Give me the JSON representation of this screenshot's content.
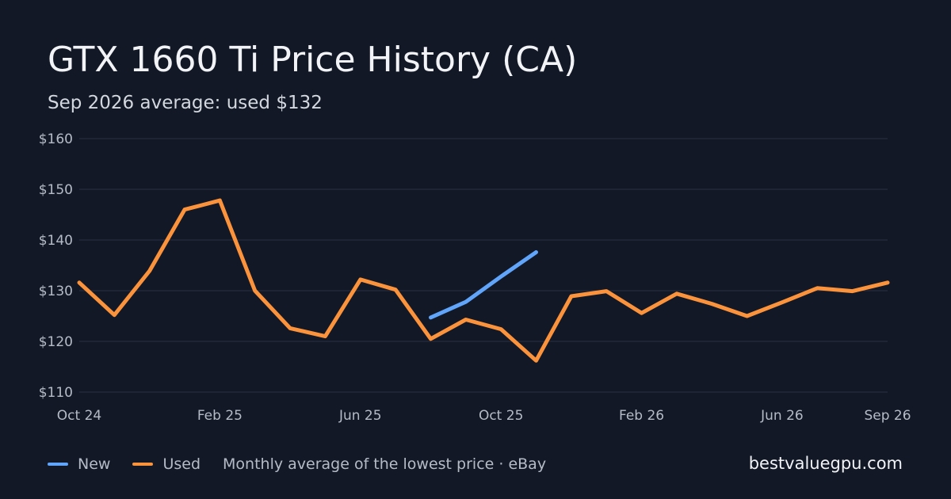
{
  "chart_data": {
    "type": "line",
    "title": "GTX 1660 Ti Price History (CA)",
    "subtitle": "Sep 2026 average: used $132",
    "x": [
      "2024-10",
      "2024-11",
      "2024-12",
      "2025-01",
      "2025-02",
      "2025-03",
      "2025-04",
      "2025-05",
      "2025-06",
      "2025-07",
      "2025-08",
      "2025-09",
      "2025-10",
      "2025-11",
      "2025-12",
      "2026-01",
      "2026-02",
      "2026-03",
      "2026-04",
      "2026-05",
      "2026-06",
      "2026-07",
      "2026-08",
      "2026-09"
    ],
    "x_ticks": [
      {
        "label": "Oct 24",
        "index": 0
      },
      {
        "label": "Feb 25",
        "index": 4
      },
      {
        "label": "Jun 25",
        "index": 8
      },
      {
        "label": "Oct 25",
        "index": 12
      },
      {
        "label": "Feb 26",
        "index": 16
      },
      {
        "label": "Jun 26",
        "index": 20
      },
      {
        "label": "Sep 26",
        "index": 23
      }
    ],
    "y_ticks": [
      {
        "label": "$160",
        "value": 160
      },
      {
        "label": "$150",
        "value": 150
      },
      {
        "label": "$140",
        "value": 140
      },
      {
        "label": "$130",
        "value": 130
      },
      {
        "label": "$120",
        "value": 120
      },
      {
        "label": "$110",
        "value": 110
      }
    ],
    "ylim": [
      110,
      160
    ],
    "grid": true,
    "legend_position": "bottom-left",
    "series": [
      {
        "name": "New",
        "color": "#60a5fa",
        "values": [
          null,
          null,
          null,
          null,
          null,
          null,
          null,
          null,
          null,
          null,
          124.7,
          127.8,
          132.8,
          137.6,
          null,
          null,
          null,
          null,
          null,
          null,
          null,
          null,
          null,
          null
        ]
      },
      {
        "name": "Used",
        "color": "#fb923c",
        "values": [
          131.6,
          125.2,
          133.9,
          146.0,
          147.8,
          130.0,
          122.6,
          121.0,
          132.2,
          130.2,
          120.5,
          124.3,
          122.4,
          116.2,
          128.9,
          129.9,
          125.6,
          129.4,
          127.4,
          125.0,
          127.7,
          130.5,
          129.9,
          131.6
        ]
      }
    ]
  },
  "legend": {
    "new_label": "New",
    "used_label": "Used",
    "note": "Monthly average of the lowest price · eBay"
  },
  "brand": "bestvaluegpu.com"
}
